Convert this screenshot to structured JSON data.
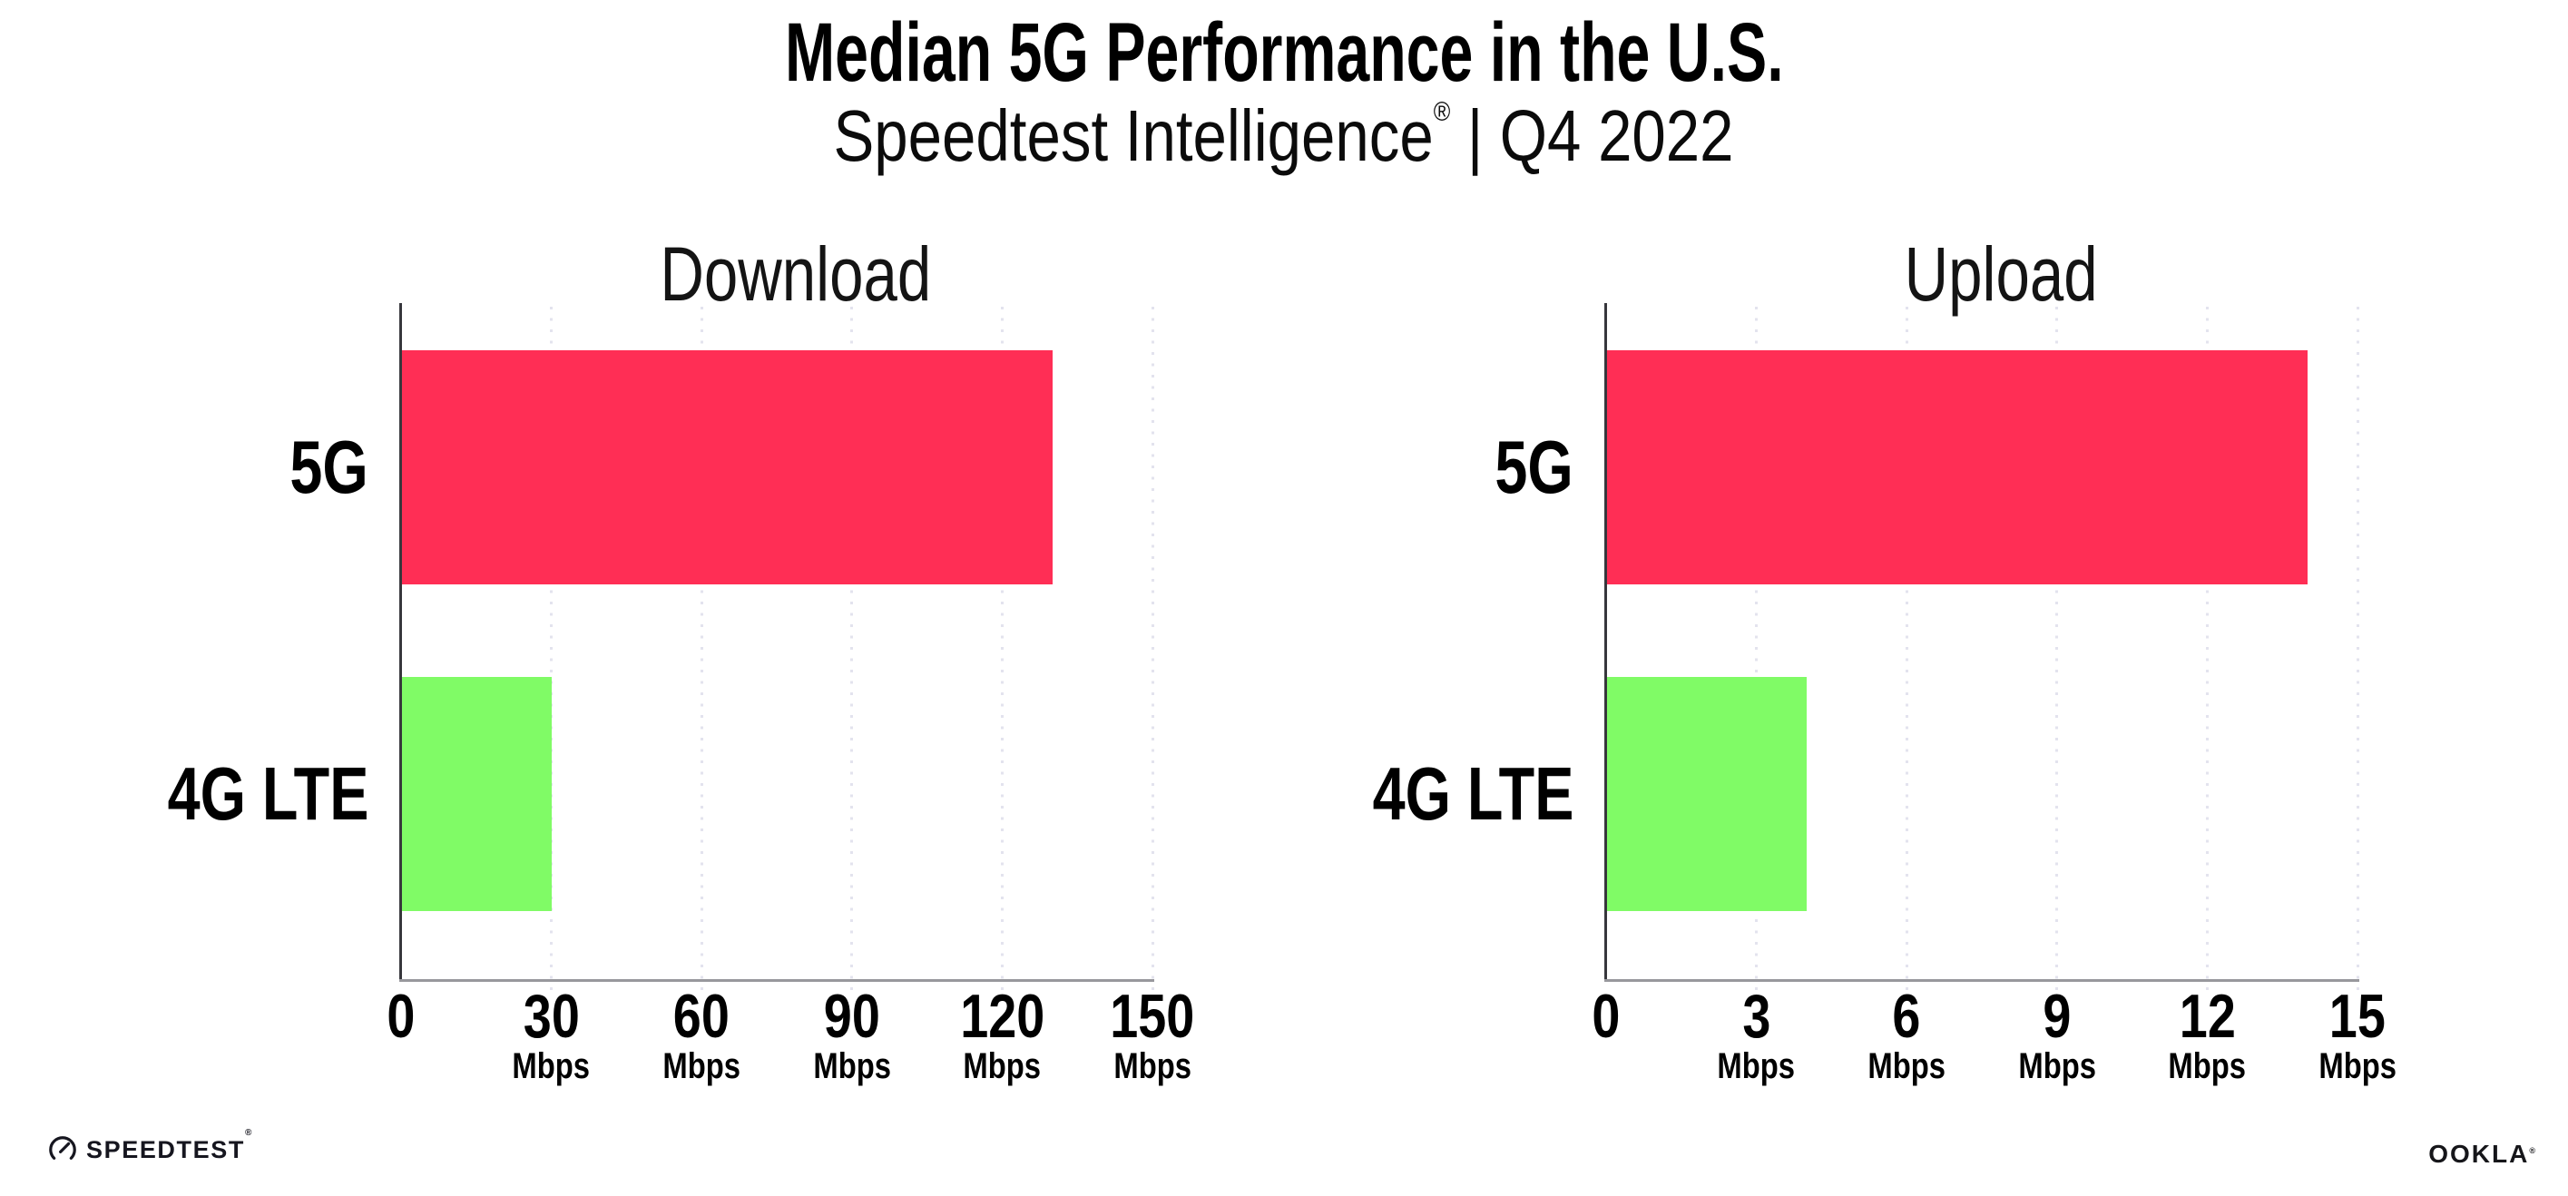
{
  "title": "Median 5G Performance in the U.S.",
  "subtitle": {
    "product": "Speedtest Intelligence",
    "registered_mark": "®",
    "separator": "|",
    "period": "Q4 2022"
  },
  "footer": {
    "speedtest_wordmark": "SPEEDTEST",
    "speedtest_registered_mark": "®",
    "ookla_wordmark": "OOKLA",
    "ookla_registered_mark": "®"
  },
  "colors": {
    "bar_5g": "#FF2E55",
    "bar_4g_lte": "#80FB66",
    "grid_dots": "#E3E3EE",
    "x_axis_line": "#98989D",
    "y_axis_line": "#37373C",
    "text": "#000000"
  },
  "chart_data": [
    {
      "type": "bar",
      "orientation": "horizontal",
      "title": "Download",
      "categories": [
        "5G",
        "4G LTE"
      ],
      "values": [
        130,
        30
      ],
      "unit": "Mbps",
      "xlim": [
        0,
        150
      ],
      "xticks": [
        0,
        30,
        60,
        90,
        120,
        150
      ],
      "bar_colors": [
        "#FF2E55",
        "#80FB66"
      ],
      "grid": "dotted vertical gridlines at each tick",
      "legend": "none"
    },
    {
      "type": "bar",
      "orientation": "horizontal",
      "title": "Upload",
      "categories": [
        "5G",
        "4G LTE"
      ],
      "values": [
        14,
        4
      ],
      "unit": "Mbps",
      "xlim": [
        0,
        15
      ],
      "xticks": [
        0,
        3,
        6,
        9,
        12,
        15
      ],
      "bar_colors": [
        "#FF2E55",
        "#80FB66"
      ],
      "grid": "dotted vertical gridlines at each tick",
      "legend": "none"
    }
  ]
}
